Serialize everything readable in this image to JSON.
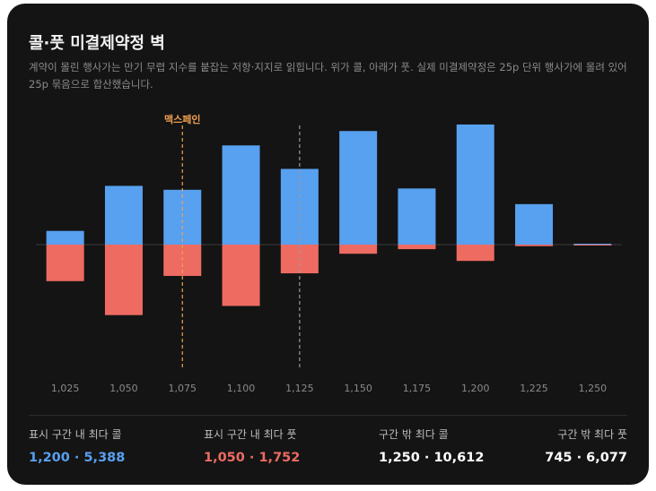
{
  "header": {
    "title": "콜·풋 미결제약정 벽",
    "subtitle": "계약이 몰린 행사가는 만기 무렵 지수를 붙잡는 저항·지지로 읽힙니다. 위가 콜, 아래가 풋. 실제 미결제약정은 25p 단위 행사가에 몰려 있어 25p 묶음으로 합산했습니다."
  },
  "colors": {
    "call": "#58a0f0",
    "put": "#ee6b62",
    "max_pain": "#f0a050",
    "current": "#9a9a9a"
  },
  "chart_data": {
    "type": "bar",
    "categories": [
      "1,025",
      "1,050",
      "1,075",
      "1,100",
      "1,125",
      "1,150",
      "1,175",
      "1,200",
      "1,225",
      "1,250"
    ],
    "series": [
      {
        "name": "콜",
        "values": [
          1050,
          4500,
          4200,
          7600,
          5800,
          8700,
          4300,
          9200,
          3100,
          70
        ]
      },
      {
        "name": "풋",
        "values": [
          -2800,
          -5400,
          -2400,
          -4700,
          -2200,
          -700,
          -350,
          -1250,
          -120,
          -30
        ]
      }
    ],
    "annotations": [
      {
        "label": "맥스페인",
        "x": "1,075",
        "style": "dashed",
        "color": "#f0a050"
      },
      {
        "label": "",
        "x": "1,125",
        "style": "dashed",
        "color": "#9a9a9a"
      }
    ],
    "ylim": [
      -6500,
      10500
    ],
    "grid": false
  },
  "stats": [
    {
      "label": "표시 구간 내 최다 콜",
      "value": "1,200 · 5,388",
      "color": "#58a0f0"
    },
    {
      "label": "표시 구간 내 최다 풋",
      "value": "1,050 · 1,752",
      "color": "#ee6b62"
    },
    {
      "label": "구간 밖 최다 콜",
      "value": "1,250 · 10,612",
      "color": "#ffffff"
    },
    {
      "label": "구간 밖 최다 풋",
      "value": "745 · 6,077",
      "color": "#ffffff"
    }
  ]
}
